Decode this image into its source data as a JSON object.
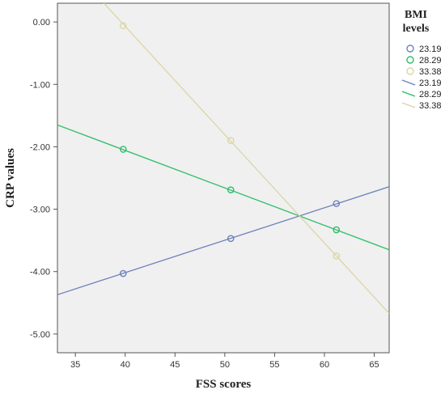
{
  "chart_data": {
    "type": "line",
    "xlabel": "FSS scores",
    "ylabel": "CRP values",
    "xlim": [
      33.2,
      66.5
    ],
    "ylim": [
      -5.3,
      0.3
    ],
    "xticks": [
      35,
      40,
      45,
      50,
      55,
      60,
      65
    ],
    "yticks": [
      0,
      -1,
      -2,
      -3,
      -4,
      -5
    ],
    "xtick_labels": [
      "35",
      "40",
      "45",
      "50",
      "55",
      "60",
      "65"
    ],
    "ytick_labels": [
      "0.00",
      "-1.00",
      "-2.00",
      "-3.00",
      "-4.00",
      "-5.00"
    ],
    "grid": false,
    "legend": {
      "title": "BMI",
      "title_line2": "levels",
      "placement": "right",
      "marker_entries": [
        "23.19",
        "28.29",
        "33.38"
      ],
      "line_entries": [
        "23.19",
        "28.29",
        "33.38"
      ]
    },
    "series": [
      {
        "name": "23.19",
        "color": "#6d82bc",
        "points": [
          [
            39.8,
            -4.03
          ],
          [
            50.6,
            -3.47
          ],
          [
            61.2,
            -2.91
          ]
        ],
        "line_ends": [
          [
            33.2,
            -4.37
          ],
          [
            66.5,
            -2.64
          ]
        ]
      },
      {
        "name": "28.29",
        "color": "#2fbd6b",
        "points": [
          [
            39.8,
            -2.04
          ],
          [
            50.6,
            -2.69
          ],
          [
            61.2,
            -3.33
          ]
        ],
        "line_ends": [
          [
            33.2,
            -1.65
          ],
          [
            66.5,
            -3.65
          ]
        ]
      },
      {
        "name": "33.38",
        "color": "#dcd5a6",
        "points": [
          [
            39.8,
            -0.06
          ],
          [
            50.6,
            -1.9
          ],
          [
            61.2,
            -3.75
          ]
        ],
        "line_ends": [
          [
            33.2,
            1.11
          ],
          [
            66.5,
            -4.67
          ]
        ]
      }
    ]
  }
}
